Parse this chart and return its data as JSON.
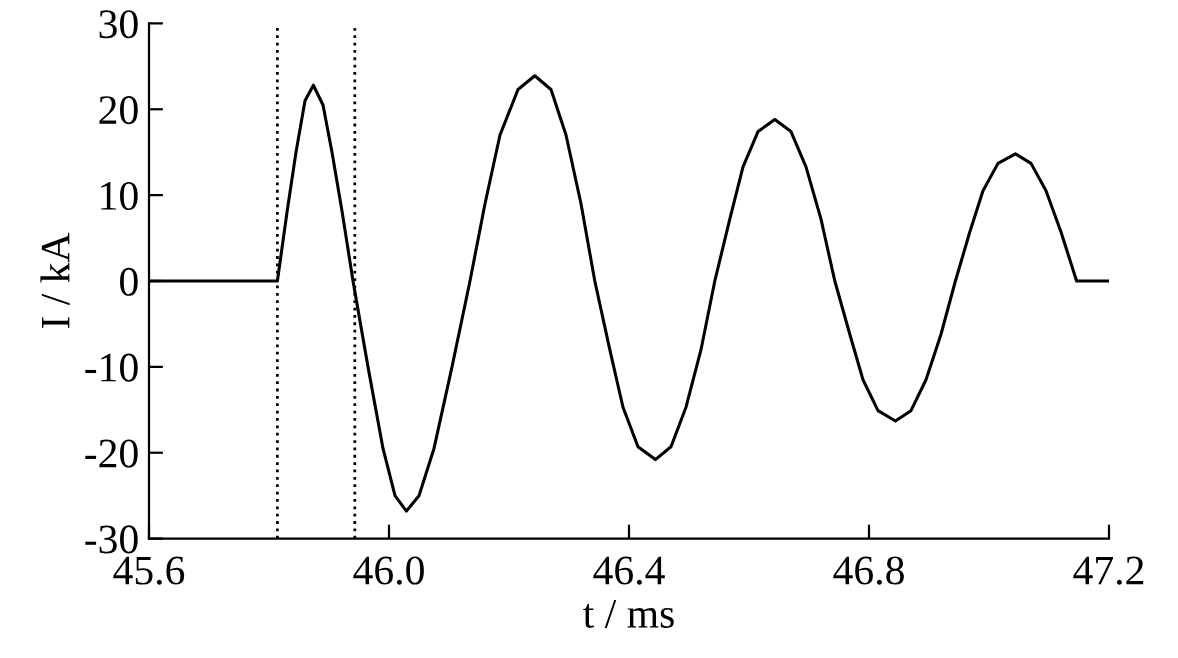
{
  "chart_data": {
    "type": "line",
    "xlabel": "t / ms",
    "ylabel": "I / kA",
    "x": [
      45.6,
      45.814,
      45.83,
      45.845,
      45.86,
      45.874,
      45.89,
      45.905,
      45.922,
      45.94,
      45.965,
      45.99,
      46.01,
      46.029,
      46.05,
      46.075,
      46.105,
      46.135,
      46.16,
      46.185,
      46.215,
      46.243,
      46.27,
      46.295,
      46.32,
      46.343,
      46.368,
      46.39,
      46.415,
      46.444,
      46.47,
      46.495,
      46.52,
      46.543,
      46.568,
      46.59,
      46.615,
      46.643,
      46.67,
      46.695,
      46.72,
      46.743,
      46.768,
      46.79,
      46.815,
      46.844,
      46.87,
      46.895,
      46.92,
      46.944,
      46.968,
      46.99,
      47.015,
      47.044,
      47.07,
      47.095,
      47.12,
      47.146,
      47.2
    ],
    "series": [
      {
        "color": "#000000",
        "values": [
          0,
          0,
          8,
          15,
          21,
          22.8,
          20.5,
          15,
          8,
          0,
          -10,
          -19.5,
          -25,
          -26.8,
          -25,
          -19.5,
          -10,
          0,
          9,
          17,
          22.3,
          23.9,
          22.3,
          17,
          9,
          0,
          -8,
          -14.7,
          -19.3,
          -20.8,
          -19.3,
          -14.7,
          -8,
          0,
          7.2,
          13.3,
          17.4,
          18.8,
          17.4,
          13.3,
          7.2,
          0,
          -6.2,
          -11.5,
          -15.1,
          -16.3,
          -15.1,
          -11.5,
          -6.2,
          0,
          5.7,
          10.5,
          13.7,
          14.8,
          13.7,
          10.5,
          5.7,
          0,
          0
        ]
      }
    ],
    "xlim": [
      45.6,
      47.2
    ],
    "xticks": [
      45.6,
      {
        "value": 46.0,
        "label": "46.0"
      },
      46.4,
      46.8,
      47.2
    ],
    "ylim": [
      -30,
      30
    ],
    "yticks": [
      -30,
      -20,
      -10,
      0,
      10,
      20,
      30
    ],
    "ref_lines": [
      {
        "axis": "x",
        "value": 45.814,
        "color": "#000000",
        "line_style": "dotted"
      },
      {
        "axis": "x",
        "value": 45.943,
        "color": "#000000",
        "line_style": "dotted"
      }
    ],
    "grid": false,
    "legend": false,
    "marker": "none",
    "line_style": "solid"
  }
}
